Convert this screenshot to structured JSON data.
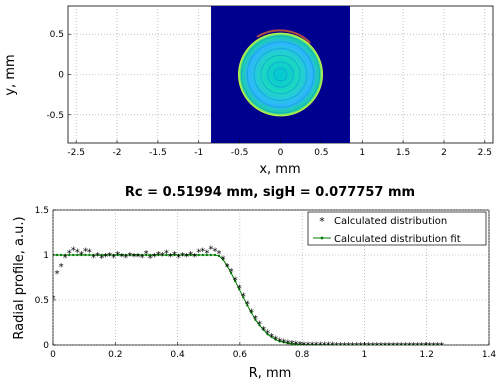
{
  "chart_data": [
    {
      "type": "heatmap",
      "title": "",
      "xlabel": "x, mm",
      "ylabel": "y, mm",
      "xlim": [
        -2.6,
        2.6
      ],
      "ylim": [
        -0.85,
        0.85
      ],
      "xticks": [
        -2.5,
        -2,
        -1.5,
        -1,
        -0.5,
        0,
        0.5,
        1,
        1.5,
        2,
        2.5
      ],
      "yticks": [
        0.5,
        0,
        -0.5
      ],
      "xtick_labels": [
        "-2.5",
        "-2",
        "-1.5",
        "-1",
        "-0.5",
        "0",
        "0.5",
        "1",
        "1.5",
        "2",
        "2.5"
      ],
      "ytick_labels": [
        "0.5",
        "0",
        "-0.5"
      ],
      "grid": "dotted",
      "image_extent": {
        "x": [
          -0.85,
          0.85
        ],
        "y": [
          -0.85,
          0.85
        ]
      },
      "spot": {
        "center": [
          0,
          0
        ],
        "radius": 0.52,
        "colormap": "jet"
      },
      "colors": {
        "background": "#00008f",
        "spot_outer": "#2fb5ff",
        "spot_inner": "#00c8d2",
        "rim": "#e0ff30"
      }
    },
    {
      "type": "scatter",
      "title": "Rc = 0.51994 mm,  sigH = 0.077757 mm",
      "xlabel": "R, mm",
      "ylabel": "Radial profile, a.u.)",
      "xlim": [
        0,
        1.4
      ],
      "ylim": [
        0,
        1.5
      ],
      "xticks": [
        0,
        0.2,
        0.4,
        0.6,
        0.8,
        1,
        1.2,
        1.4
      ],
      "yticks": [
        0,
        0.5,
        1,
        1.5
      ],
      "xtick_labels": [
        "0",
        "0.2",
        "0.4",
        "0.6",
        "0.8",
        "1",
        "1.2",
        "1.4"
      ],
      "ytick_labels": [
        "0",
        "0.5",
        "1",
        "1.5"
      ],
      "grid": "dotted",
      "legend_position": "top-right",
      "fit_params": {
        "Rc": 0.51994,
        "sigH": 0.077757
      },
      "series": [
        {
          "name": "Calculated distribution",
          "marker": "*",
          "color": "#0000ff",
          "x": [
            0.0,
            0.013,
            0.026,
            0.039,
            0.052,
            0.065,
            0.078,
            0.091,
            0.104,
            0.117,
            0.13,
            0.143,
            0.156,
            0.169,
            0.182,
            0.195,
            0.208,
            0.221,
            0.234,
            0.247,
            0.26,
            0.273,
            0.286,
            0.299,
            0.312,
            0.325,
            0.338,
            0.351,
            0.364,
            0.377,
            0.39,
            0.403,
            0.416,
            0.429,
            0.442,
            0.455,
            0.468,
            0.481,
            0.494,
            0.507,
            0.52,
            0.533,
            0.546,
            0.559,
            0.572,
            0.585,
            0.598,
            0.611,
            0.624,
            0.637,
            0.65,
            0.663,
            0.676,
            0.689,
            0.702,
            0.715,
            0.728,
            0.741,
            0.754,
            0.767,
            0.78,
            0.793,
            0.806,
            0.819,
            0.832,
            0.845,
            0.858,
            0.871,
            0.884,
            0.897,
            0.91,
            0.923,
            0.936,
            0.949,
            0.962,
            0.975,
            0.988,
            1.001,
            1.014,
            1.027,
            1.04,
            1.053,
            1.066,
            1.079,
            1.092,
            1.105,
            1.118,
            1.131,
            1.144,
            1.157,
            1.17,
            1.183,
            1.196,
            1.209,
            1.222,
            1.235,
            1.248
          ],
          "y": [
            0.52,
            0.8,
            0.88,
            0.98,
            1.03,
            1.06,
            1.04,
            1.01,
            1.05,
            1.04,
            0.98,
            1.0,
            0.97,
            0.99,
            1.0,
            0.98,
            1.01,
            0.99,
            0.98,
            1.0,
            0.99,
            0.99,
            0.98,
            1.02,
            0.97,
            0.99,
            1.01,
            1.0,
            1.03,
            0.99,
            1.01,
            0.98,
            1.0,
            0.99,
            1.01,
            0.99,
            1.04,
            1.05,
            1.03,
            1.07,
            1.05,
            1.02,
            0.96,
            0.88,
            0.82,
            0.73,
            0.64,
            0.55,
            0.46,
            0.37,
            0.3,
            0.24,
            0.18,
            0.14,
            0.1,
            0.07,
            0.05,
            0.04,
            0.03,
            0.02,
            0.015,
            0.01,
            0.008,
            0.006,
            0.005,
            0.004,
            0.004,
            0.003,
            0.003,
            0.003,
            0.002,
            0.002,
            0.002,
            0.002,
            0.002,
            0.002,
            0.002,
            0.002,
            0.002,
            0.002,
            0.002,
            0.002,
            0.002,
            0.002,
            0.002,
            0.002,
            0.002,
            0.002,
            0.002,
            0.002,
            0.002,
            0.002,
            0.002,
            0.002,
            0.002,
            0.002,
            0.002
          ]
        },
        {
          "name": "Calculated distribution fit",
          "marker": "line-dot",
          "color": "#007f00",
          "x": [
            0.0,
            0.013,
            0.026,
            0.039,
            0.052,
            0.065,
            0.078,
            0.091,
            0.104,
            0.117,
            0.13,
            0.143,
            0.156,
            0.169,
            0.182,
            0.195,
            0.208,
            0.221,
            0.234,
            0.247,
            0.26,
            0.273,
            0.286,
            0.299,
            0.312,
            0.325,
            0.338,
            0.351,
            0.364,
            0.377,
            0.39,
            0.403,
            0.416,
            0.429,
            0.442,
            0.455,
            0.468,
            0.481,
            0.494,
            0.507,
            0.52,
            0.533,
            0.546,
            0.559,
            0.572,
            0.585,
            0.598,
            0.611,
            0.624,
            0.637,
            0.65,
            0.663,
            0.676,
            0.689,
            0.702,
            0.715,
            0.728,
            0.741,
            0.754,
            0.767,
            0.78,
            0.793,
            0.806,
            0.819,
            0.832,
            0.845,
            0.858,
            0.871,
            0.884,
            0.897,
            0.91,
            0.923,
            0.936,
            0.949,
            0.962,
            0.975,
            0.988,
            1.001,
            1.014,
            1.027,
            1.04,
            1.053,
            1.066,
            1.079,
            1.092,
            1.105,
            1.118,
            1.131,
            1.144,
            1.157,
            1.17,
            1.183,
            1.196,
            1.209,
            1.222,
            1.235,
            1.248
          ],
          "y": [
            1.0,
            1.0,
            1.0,
            1.0,
            1.0,
            1.0,
            1.0,
            1.0,
            1.0,
            1.0,
            1.0,
            1.0,
            1.0,
            1.0,
            1.0,
            1.0,
            1.0,
            1.0,
            1.0,
            1.0,
            1.0,
            1.0,
            1.0,
            1.0,
            1.0,
            1.0,
            1.0,
            1.0,
            1.0,
            1.0,
            1.0,
            1.0,
            1.0,
            1.0,
            1.0,
            1.0,
            1.0,
            1.0,
            1.0,
            1.0,
            1.0,
            0.99,
            0.95,
            0.88,
            0.8,
            0.71,
            0.62,
            0.53,
            0.44,
            0.36,
            0.28,
            0.22,
            0.17,
            0.12,
            0.09,
            0.06,
            0.04,
            0.03,
            0.02,
            0.01,
            0.01,
            0.005,
            0.003,
            0.002,
            0.001,
            0,
            0,
            0,
            0,
            0,
            0,
            0,
            0,
            0,
            0,
            0,
            0,
            0,
            0,
            0,
            0,
            0,
            0,
            0,
            0,
            0,
            0,
            0,
            0,
            0,
            0,
            0,
            0,
            0,
            0,
            0,
            0
          ]
        }
      ]
    }
  ]
}
